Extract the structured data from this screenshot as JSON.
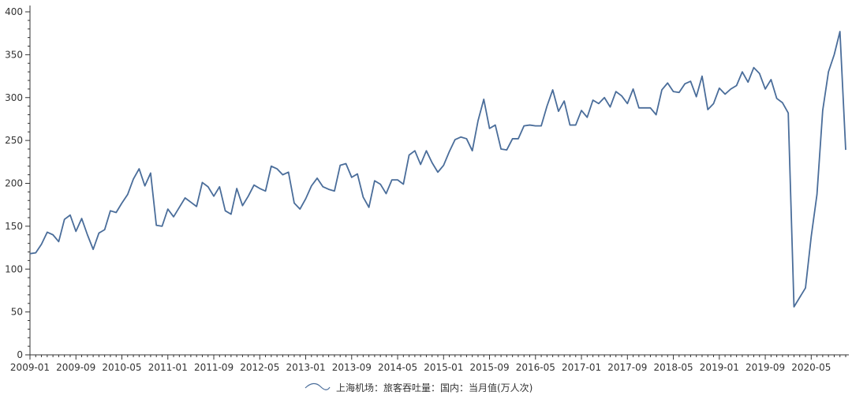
{
  "chart_data": {
    "type": "line",
    "series": [
      {
        "name": "上海机场：旅客吞吐量：国内：当月值(万人次)",
        "color": "#4a6d9a",
        "values": [
          118,
          119,
          129,
          143,
          140,
          132,
          158,
          163,
          144,
          159,
          140,
          123,
          142,
          146,
          168,
          166,
          177,
          187,
          205,
          217,
          197,
          212,
          151,
          150,
          170,
          161,
          172,
          183,
          178,
          173,
          201,
          196,
          185,
          196,
          168,
          164,
          194,
          174,
          185,
          198,
          194,
          191,
          220,
          217,
          210,
          213,
          177,
          170,
          182,
          197,
          206,
          196,
          193,
          191,
          221,
          223,
          207,
          211,
          184,
          172,
          203,
          199,
          188,
          204,
          204,
          199,
          233,
          238,
          222,
          238,
          224,
          213,
          221,
          237,
          251,
          254,
          252,
          238,
          273,
          298,
          264,
          268,
          240,
          239,
          252,
          252,
          267,
          268,
          267,
          267,
          290,
          309,
          284,
          296,
          268,
          268,
          285,
          277,
          297,
          293,
          300,
          289,
          307,
          302,
          293,
          310,
          288,
          288,
          288,
          280,
          309,
          317,
          307,
          306,
          316,
          319,
          301,
          325,
          286,
          293,
          311,
          304,
          310,
          314,
          330,
          318,
          335,
          328,
          310,
          321,
          299,
          294,
          282,
          56,
          67,
          78,
          138,
          187,
          285,
          330,
          350,
          377,
          239
        ]
      }
    ],
    "x_tick_labels": [
      "2009-01",
      "2009-09",
      "2010-05",
      "2011-01",
      "2011-09",
      "2012-05",
      "2013-01",
      "2013-09",
      "2014-05",
      "2015-01",
      "2015-09",
      "2016-05",
      "2017-01",
      "2017-09",
      "2018-05",
      "2019-01",
      "2019-09",
      "2020-05"
    ],
    "x_tick_step": 8,
    "y_ticks": [
      0,
      50,
      100,
      150,
      200,
      250,
      300,
      350,
      400
    ],
    "ylim": [
      0,
      400
    ],
    "title": "",
    "xlabel": "",
    "ylabel": "",
    "legend_position": "bottom-center",
    "grid": false
  }
}
